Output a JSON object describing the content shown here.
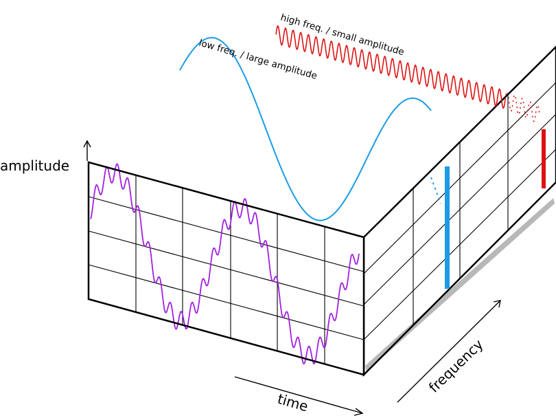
{
  "labels": {
    "amplitude": "amplitude",
    "time": "time",
    "frequency": "frequency",
    "low_wave": "low freq. / large amplitude",
    "high_wave": "high freq. / small amplitude"
  },
  "colors": {
    "low_wave": "#1a9be6",
    "high_wave": "#dd1111",
    "combined_wave": "#a020e0",
    "grid": "#000000",
    "floor_shadow": "#b0b0b0"
  },
  "components": [
    {
      "name": "low freq. / large amplitude",
      "relative_frequency": 1,
      "relative_amplitude": 1,
      "color_key": "low_wave"
    },
    {
      "name": "high freq. / small amplitude",
      "relative_frequency": 12,
      "relative_amplitude": 0.15,
      "color_key": "high_wave"
    }
  ]
}
